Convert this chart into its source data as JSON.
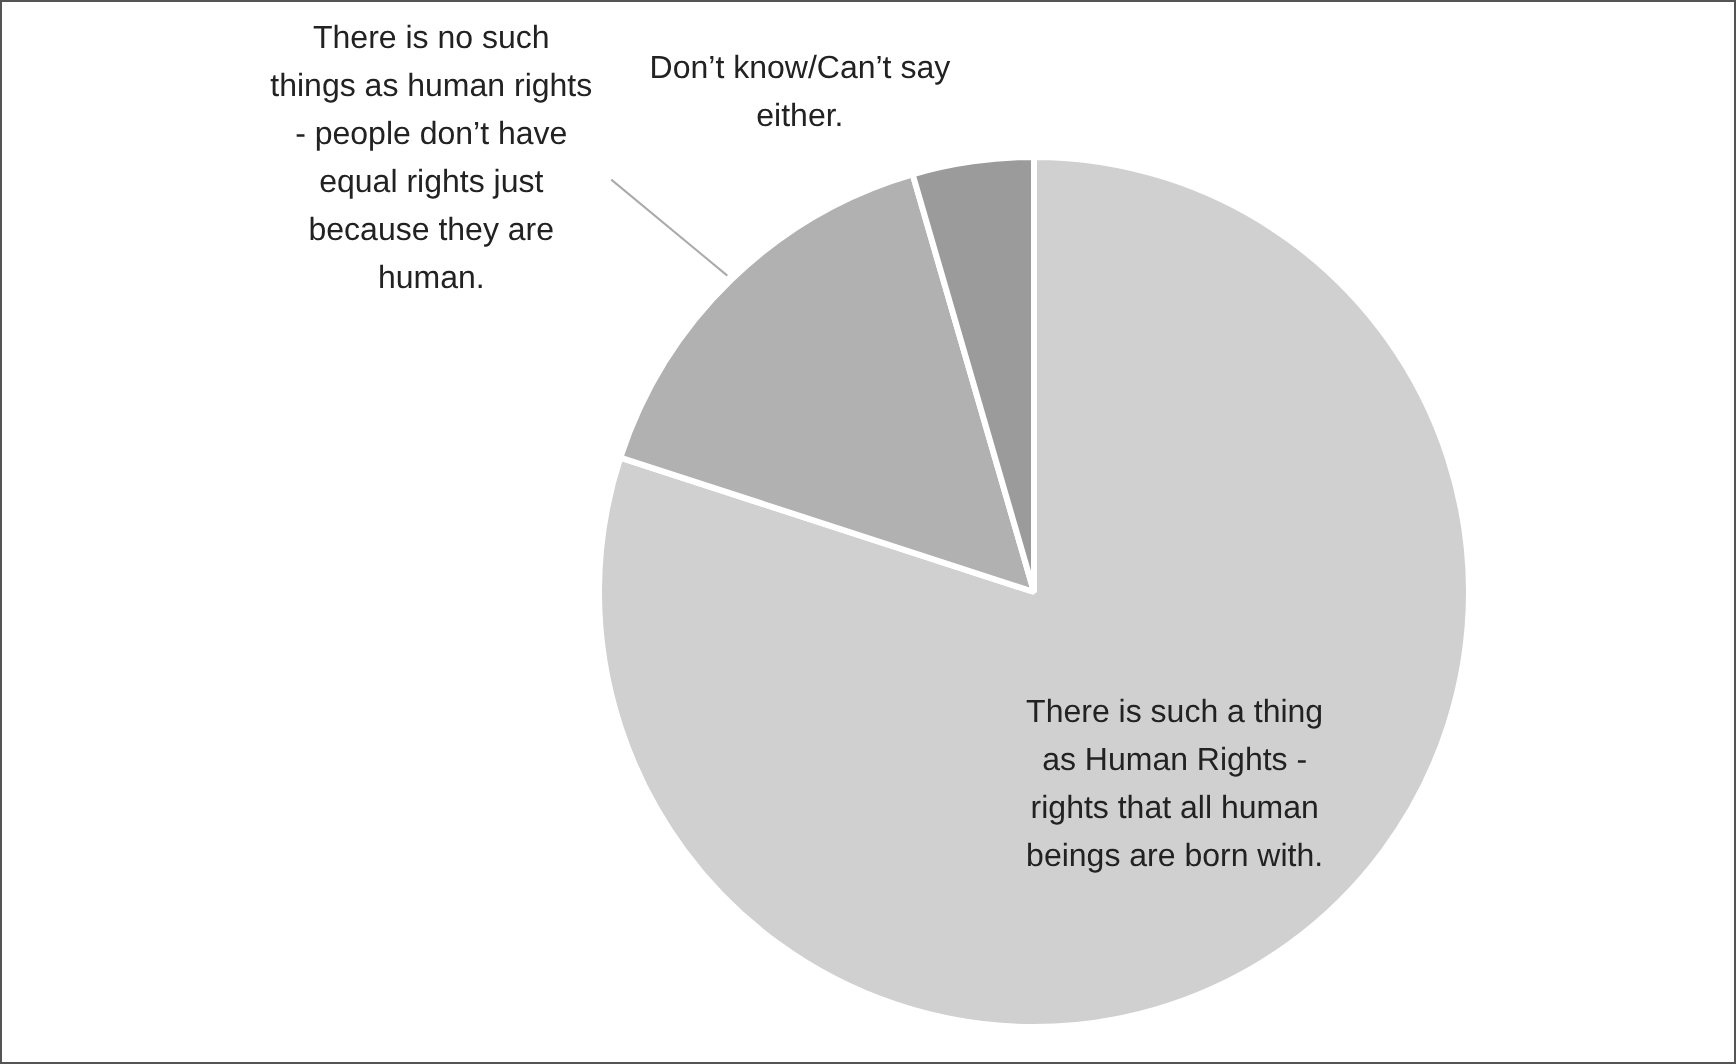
{
  "chart_data": {
    "type": "pie",
    "categories": [
      "There is such a thing as Human Rights - rights that all human beings are born with.",
      "There is no such things as human rights - people don’t have equal rights just because they are human.",
      "Don’t know/Can’t say either."
    ],
    "values": [
      80,
      15.5,
      4.5
    ],
    "colors": [
      "#d0d0d0",
      "#b1b1b1",
      "#9b9b9b"
    ],
    "legend": false
  }
}
